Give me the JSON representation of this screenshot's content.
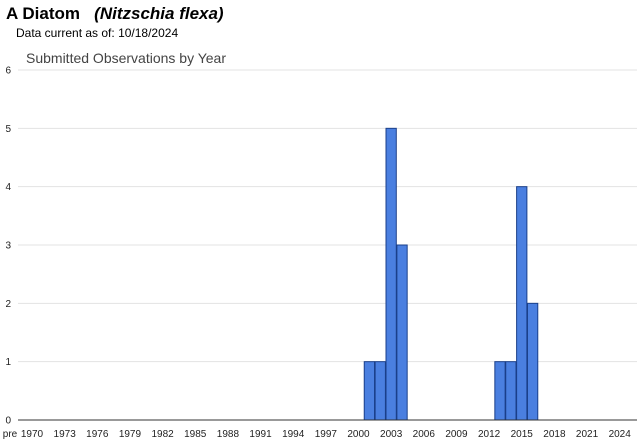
{
  "header": {
    "common_name": "A Diatom",
    "scientific_name": "(Nitzschia flexa)",
    "data_current_label": "Data current as of:",
    "data_current_date": "10/18/2024"
  },
  "chart_data": {
    "type": "bar",
    "title": "Submitted Observations by Year",
    "xlabel": "",
    "ylabel": "",
    "ylim": [
      0,
      6
    ],
    "yticks": [
      0,
      1,
      2,
      3,
      4,
      5,
      6
    ],
    "grid": true,
    "legend": "none",
    "x_tick_labels": [
      "pre",
      "1970",
      "1973",
      "1976",
      "1979",
      "1982",
      "1985",
      "1988",
      "1991",
      "1994",
      "1997",
      "2000",
      "2003",
      "2006",
      "2009",
      "2012",
      "2015",
      "2018",
      "2021",
      "2024"
    ],
    "categories": [
      2001,
      2002,
      2003,
      2004,
      2013,
      2014,
      2015,
      2016
    ],
    "values": [
      1,
      1,
      5,
      3,
      1,
      1,
      4,
      2
    ],
    "bar_color": "#4a7fe0",
    "bar_edge_color": "#1a3f8a"
  }
}
